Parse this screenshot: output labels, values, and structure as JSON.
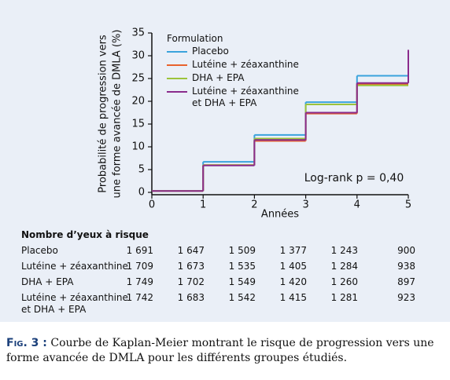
{
  "chart_data": {
    "type": "step",
    "y_label": [
      "Probabilité de progression vers",
      "une forme avancée de DMLA (%)"
    ],
    "x_label": "Années",
    "legend_title": "Formulation",
    "annotation": "Log-rank p = 0,40",
    "x": [
      0,
      1,
      2,
      3,
      4,
      5
    ],
    "xlim": [
      0,
      5
    ],
    "xticks": [
      0,
      1,
      2,
      3,
      4,
      5
    ],
    "ylim": [
      0,
      35
    ],
    "yticks": [
      0,
      5,
      10,
      15,
      20,
      25,
      30,
      35
    ],
    "series": [
      {
        "name": "Placebo",
        "color": "#3aa3dc",
        "values": [
          0.3,
          6.7,
          12.6,
          19.8,
          25.6,
          25.6
        ]
      },
      {
        "name": "Lutéine + zéaxanthine",
        "color": "#e8622c",
        "values": [
          0.3,
          6.0,
          11.3,
          17.3,
          23.8,
          23.8
        ]
      },
      {
        "name": "DHA + EPA",
        "color": "#9cc33b",
        "values": [
          0.3,
          6.0,
          11.8,
          19.3,
          23.5,
          23.5
        ]
      },
      {
        "name": "Lutéine + zéaxanthine et DHA + EPA",
        "color": "#8a2b8c",
        "values": [
          0.3,
          5.9,
          11.5,
          17.5,
          24.0,
          31.3
        ]
      }
    ]
  },
  "risk_table": {
    "title": "Nombre d’yeux à risque",
    "rows": [
      {
        "label": "Placebo",
        "values": [
          "1 691",
          "1 647",
          "1 509",
          "1 377",
          "1 243",
          "900"
        ]
      },
      {
        "label": "Lutéine + zéaxanthine",
        "values": [
          "1 709",
          "1 673",
          "1 535",
          "1 405",
          "1 284",
          "938"
        ]
      },
      {
        "label": "DHA + EPA",
        "values": [
          "1 749",
          "1 702",
          "1 549",
          "1 420",
          "1 260",
          "897"
        ]
      },
      {
        "label": "Lutéine + zéaxanthine et DHA + EPA",
        "values": [
          "1 742",
          "1 683",
          "1 542",
          "1 415",
          "1 281",
          "923"
        ]
      }
    ]
  },
  "caption": {
    "label": "Fig. 3 :",
    "text": "Courbe de Kaplan-Meier montrant le risque de progression vers une forme avancée de DMLA pour les différents groupes étudiés."
  }
}
